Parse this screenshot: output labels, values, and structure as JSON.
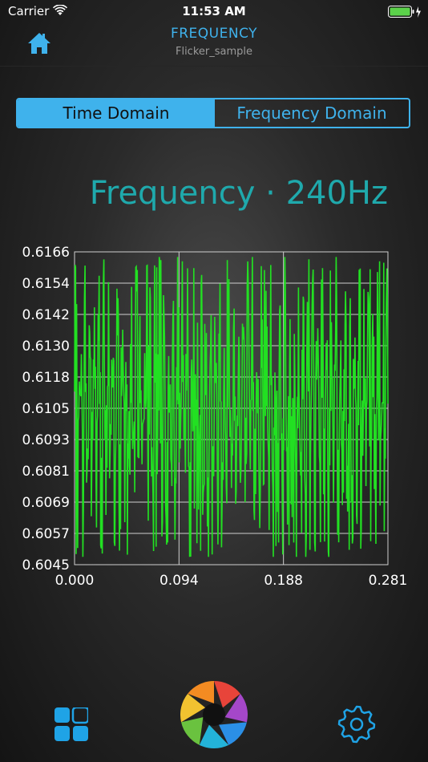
{
  "status": {
    "carrier": "Carrier",
    "time": "11:53 AM"
  },
  "header": {
    "title": "FREQUENCY",
    "subtitle": "Flicker_sample"
  },
  "tabs": [
    {
      "label": "Time Domain",
      "selected": true
    },
    {
      "label": "Frequency Domain",
      "selected": false
    }
  ],
  "frequency_label": "Frequency · 240Hz",
  "colors": {
    "accent": "#3fb2ec",
    "title": "#1fa9ac",
    "signal": "#22e022"
  },
  "icons": {
    "home": "home-icon",
    "apps": "grid-icon",
    "capture": "aperture-icon",
    "settings": "gear-icon"
  },
  "chart_data": {
    "type": "line",
    "ylim": [
      0.6045,
      0.6166
    ],
    "xlim": [
      0.0,
      0.281
    ],
    "yticks": [
      "0.6166",
      "0.6154",
      "0.6142",
      "0.6130",
      "0.6118",
      "0.6105",
      "0.6093",
      "0.6081",
      "0.6069",
      "0.6057",
      "0.6045"
    ],
    "xticks": [
      "0.000",
      "0.094",
      "0.188",
      "0.281"
    ],
    "grid": true,
    "series": [
      {
        "color": "#22e022",
        "period_s": 0.004167,
        "ymin": 0.6048,
        "ymax": 0.6164,
        "samples": 600
      }
    ]
  }
}
